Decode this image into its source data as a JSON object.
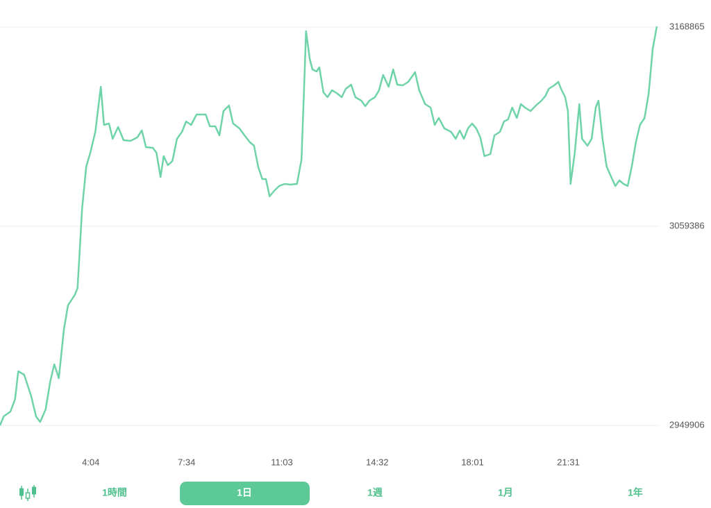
{
  "chart_data": {
    "type": "line",
    "color": "#6fd3a8",
    "x": [
      45,
      53,
      68,
      78,
      85,
      98,
      113,
      124,
      133,
      145,
      155,
      164,
      174,
      185,
      194,
      209,
      215,
      225,
      234,
      243,
      254,
      266,
      273,
      284,
      292,
      304,
      316,
      331,
      346,
      356,
      365,
      380,
      388,
      397,
      404,
      413,
      423,
      433,
      444,
      453,
      464,
      476,
      486,
      496,
      505,
      517,
      526,
      535,
      547,
      556,
      570,
      581,
      593,
      602,
      611,
      620,
      628,
      636,
      646,
      657,
      669,
      681,
      696,
      706,
      712,
      716,
      724,
      730,
      739,
      745,
      754,
      763,
      773,
      785,
      794,
      803,
      815,
      824,
      837,
      846,
      855,
      867,
      876,
      885,
      897,
      907,
      916,
      928,
      940,
      955,
      964,
      977,
      989,
      998,
      1007,
      1019,
      1034,
      1044,
      1053,
      1062,
      1071,
      1080,
      1089,
      1098,
      1107,
      1120,
      1129,
      1141,
      1150,
      1159,
      1168,
      1178,
      1187,
      1196,
      1208,
      1220,
      1232,
      1241,
      1248,
      1260,
      1269,
      1275,
      1284,
      1290,
      1296,
      1305,
      1315,
      1321,
      1333,
      1342,
      1351,
      1357,
      1366,
      1375,
      1385,
      1394,
      1403,
      1412,
      1421,
      1430,
      1439,
      1448,
      1458,
      1467,
      1476,
      1485
    ],
    "values": [
      2949906,
      2954865,
      2957535,
      2964401,
      2979660,
      2977753,
      2966309,
      2954865,
      2951813,
      2958680,
      2973938,
      2983474,
      2975845,
      3002547,
      3015899,
      3021620,
      3025435,
      3069303,
      3092191,
      3099820,
      3111264,
      3136058,
      3115078,
      3115841,
      3107449,
      3113934,
      3106686,
      3106305,
      3108212,
      3112027,
      3102871,
      3102490,
      3099820,
      3086469,
      3097912,
      3092954,
      3095242,
      3107449,
      3111264,
      3116985,
      3115078,
      3120800,
      3120800,
      3120800,
      3114315,
      3114315,
      3109356,
      3122707,
      3125759,
      3115841,
      3113171,
      3109356,
      3105542,
      3103634,
      3092191,
      3085324,
      3085324,
      3075788,
      3078839,
      3081510,
      3082654,
      3082273,
      3082654,
      3096005,
      3137966,
      3166575,
      3151317,
      3145595,
      3144451,
      3146739,
      3133007,
      3130337,
      3134151,
      3132244,
      3130337,
      3134914,
      3137203,
      3130337,
      3128429,
      3125378,
      3128429,
      3130337,
      3134151,
      3142543,
      3136058,
      3145595,
      3137203,
      3136821,
      3138729,
      3144069,
      3134151,
      3126522,
      3124615,
      3115078,
      3118893,
      3113171,
      3111264,
      3107449,
      3112027,
      3107449,
      3113171,
      3115841,
      3113171,
      3108212,
      3097912,
      3099057,
      3109356,
      3111264,
      3116985,
      3118130,
      3124615,
      3118893,
      3126522,
      3124615,
      3122707,
      3125759,
      3128429,
      3131100,
      3134914,
      3136821,
      3138729,
      3134914,
      3130337,
      3122707,
      3082654,
      3099820,
      3126522,
      3107449,
      3103634,
      3107449,
      3124615,
      3128429,
      3107449,
      3092191,
      3086469,
      3081510,
      3084561,
      3082654,
      3081510,
      3092191,
      3105542,
      3115078,
      3118893,
      3132244,
      3157039,
      3169246
    ],
    "xlim": [
      45,
      1485
    ],
    "xticks": [
      {
        "value": 244,
        "label": "4:04"
      },
      {
        "value": 454,
        "label": "7:34"
      },
      {
        "value": 663,
        "label": "11:03"
      },
      {
        "value": 872,
        "label": "14:32"
      },
      {
        "value": 1081,
        "label": "18:01"
      },
      {
        "value": 1291,
        "label": "21:31"
      }
    ],
    "ylim": [
      2949906,
      3168865
    ],
    "yticks": [
      2949906,
      3059386,
      3168865
    ],
    "grid": true
  },
  "controls": {
    "tabs": [
      "1時間",
      "1日",
      "1週",
      "1月",
      "1年"
    ]
  }
}
